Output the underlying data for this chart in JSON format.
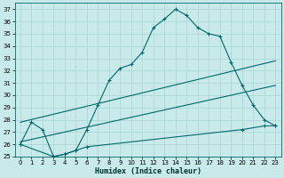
{
  "xlabel": "Humidex (Indice chaleur)",
  "bg_color": "#c8eaea",
  "grid_color": "#b0d8d8",
  "line_color": "#006868",
  "xlim": [
    -0.5,
    23.5
  ],
  "ylim": [
    25,
    37.5
  ],
  "yticks": [
    25,
    26,
    27,
    28,
    29,
    30,
    31,
    32,
    33,
    34,
    35,
    36,
    37
  ],
  "xticks": [
    0,
    1,
    2,
    3,
    4,
    5,
    6,
    7,
    8,
    9,
    10,
    11,
    12,
    13,
    14,
    15,
    16,
    17,
    18,
    19,
    20,
    21,
    22,
    23
  ],
  "line1_jagged": {
    "x": [
      0,
      1,
      2,
      3,
      4,
      5,
      6,
      7,
      8,
      9,
      10,
      11,
      12,
      13,
      14,
      15,
      16,
      17,
      18,
      19,
      20,
      21,
      22,
      23
    ],
    "y": [
      26.0,
      27.8,
      27.2,
      25.0,
      25.2,
      25.5,
      27.2,
      29.2,
      31.2,
      32.2,
      32.5,
      33.5,
      35.5,
      36.2,
      37.0,
      36.5,
      35.5,
      35.0,
      34.8,
      32.7,
      30.8,
      29.2,
      28.0,
      27.5
    ]
  },
  "line2_upper_diag": {
    "x": [
      0,
      23
    ],
    "y": [
      27.8,
      32.8
    ]
  },
  "line3_lower_diag": {
    "x": [
      0,
      23
    ],
    "y": [
      26.2,
      30.8
    ]
  },
  "line4_flat": {
    "x": [
      0,
      3,
      4,
      5,
      6,
      20,
      22,
      23
    ],
    "y": [
      26.0,
      25.0,
      25.2,
      25.5,
      25.8,
      27.2,
      27.5,
      27.5
    ]
  },
  "line5_zigzag": {
    "x": [
      2,
      3,
      4,
      5,
      6,
      7,
      8,
      19,
      20,
      22,
      23
    ],
    "y": [
      27.2,
      25.0,
      25.2,
      25.5,
      25.8,
      27.2,
      29.2,
      32.7,
      30.8,
      28.0,
      27.5
    ]
  }
}
